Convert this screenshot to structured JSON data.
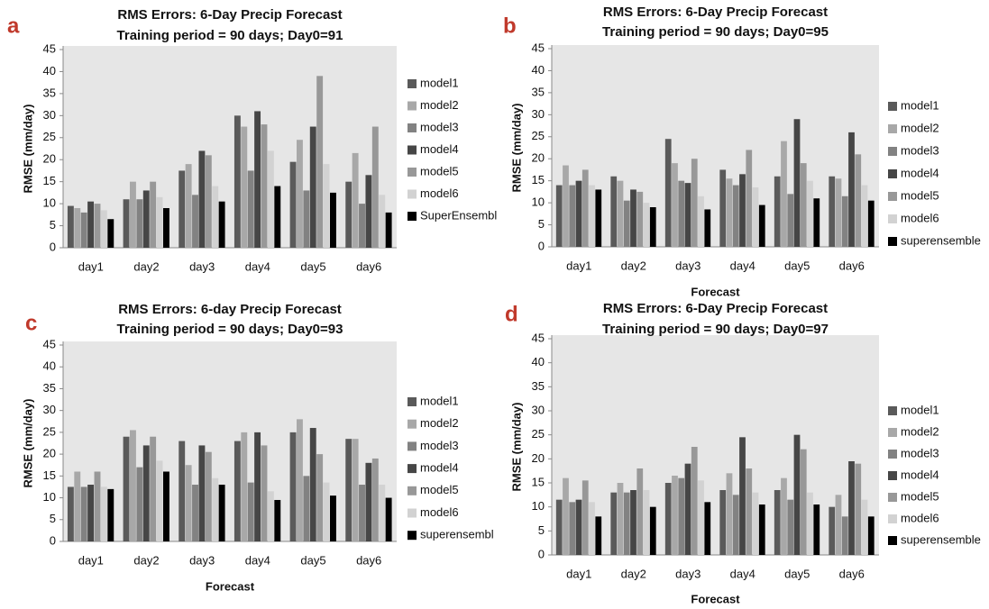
{
  "chart_data": [
    {
      "type": "bar",
      "label": "a",
      "title": "RMS Errors: 6-Day Precip Forecast",
      "subtitle": "Training period = 90 days;  Day0=91",
      "y_label": "RMSE (mm/day)",
      "categories": [
        "day1",
        "day2",
        "day3",
        "day4",
        "day5",
        "day6"
      ],
      "ylim": [
        0,
        45
      ],
      "yticks": [
        0,
        5,
        10,
        15,
        20,
        25,
        30,
        35,
        40,
        45
      ],
      "series": [
        {
          "name": "model1",
          "color": "#5a5a5a",
          "values": [
            9.5,
            11,
            17.5,
            30,
            19.5,
            15
          ]
        },
        {
          "name": "model2",
          "color": "#a8a8a8",
          "values": [
            9,
            15,
            19,
            27.5,
            24.5,
            21.5
          ]
        },
        {
          "name": "model3",
          "color": "#828282",
          "values": [
            8,
            11,
            12,
            17.5,
            13,
            10
          ]
        },
        {
          "name": "model4",
          "color": "#464646",
          "values": [
            10.5,
            13,
            22,
            31,
            27.5,
            16.5
          ]
        },
        {
          "name": "model5",
          "color": "#989898",
          "values": [
            10,
            15,
            21,
            28,
            39,
            27.5
          ]
        },
        {
          "name": "model6",
          "color": "#d2d2d2",
          "values": [
            8.5,
            11.5,
            14,
            22,
            19,
            12
          ]
        },
        {
          "name": "SuperEnsembl",
          "color": "#000000",
          "values": [
            6.5,
            9,
            10.5,
            14,
            12.5,
            8
          ]
        }
      ]
    },
    {
      "type": "bar",
      "label": "b",
      "title": "RMS Errors: 6-Day Precip Forecast",
      "subtitle": "Training period = 90 days;  Day0=95",
      "y_label": "RMSE (mm/day)",
      "x_label": "Forecast",
      "categories": [
        "day1",
        "day2",
        "day3",
        "day4",
        "day5",
        "day6"
      ],
      "ylim": [
        0,
        45
      ],
      "yticks": [
        0,
        5,
        10,
        15,
        20,
        25,
        30,
        35,
        40,
        45
      ],
      "series": [
        {
          "name": "model1",
          "color": "#5a5a5a",
          "values": [
            14,
            16,
            24.5,
            17.5,
            16,
            16
          ]
        },
        {
          "name": "model2",
          "color": "#a8a8a8",
          "values": [
            18.5,
            15,
            19,
            15.5,
            24,
            15.5
          ]
        },
        {
          "name": "model3",
          "color": "#828282",
          "values": [
            14,
            10.5,
            15,
            14,
            12,
            11.5
          ]
        },
        {
          "name": "model4",
          "color": "#464646",
          "values": [
            15,
            13,
            14.5,
            16.5,
            29,
            26
          ]
        },
        {
          "name": "model5",
          "color": "#989898",
          "values": [
            17.5,
            12.5,
            20,
            22,
            19,
            21
          ]
        },
        {
          "name": "model6",
          "color": "#d2d2d2",
          "values": [
            14,
            10,
            11.5,
            13.5,
            15,
            14
          ]
        },
        {
          "name": "superensemble",
          "color": "#000000",
          "values": [
            13,
            9,
            8.5,
            9.5,
            11,
            10.5
          ]
        }
      ]
    },
    {
      "type": "bar",
      "label": "c",
      "title": "RMS Errors: 6-day Precip Forecast",
      "subtitle": "Training period = 90 days;  Day0=93",
      "y_label": "RMSE (mm/day)",
      "x_label": "Forecast",
      "categories": [
        "day1",
        "day2",
        "day3",
        "day4",
        "day5",
        "day6"
      ],
      "ylim": [
        0,
        45
      ],
      "yticks": [
        0,
        5,
        10,
        15,
        20,
        25,
        30,
        35,
        40,
        45
      ],
      "series": [
        {
          "name": "model1",
          "color": "#5a5a5a",
          "values": [
            12.5,
            24,
            23,
            23,
            25,
            23.5
          ]
        },
        {
          "name": "model2",
          "color": "#a8a8a8",
          "values": [
            16,
            25.5,
            17.5,
            25,
            28,
            23.5
          ]
        },
        {
          "name": "model3",
          "color": "#828282",
          "values": [
            12.5,
            17,
            13,
            13.5,
            15,
            13
          ]
        },
        {
          "name": "model4",
          "color": "#464646",
          "values": [
            13,
            22,
            22,
            25,
            26,
            18
          ]
        },
        {
          "name": "model5",
          "color": "#989898",
          "values": [
            16,
            24,
            20.5,
            22,
            20,
            19
          ]
        },
        {
          "name": "model6",
          "color": "#d2d2d2",
          "values": [
            12.5,
            18.5,
            14.5,
            11.5,
            13.5,
            13
          ]
        },
        {
          "name": "superensembl",
          "color": "#000000",
          "values": [
            12,
            16,
            13,
            9.5,
            10.5,
            10
          ]
        }
      ]
    },
    {
      "type": "bar",
      "label": "d",
      "title": "RMS Errors: 6-Day Precip Forecast",
      "subtitle": "Training period = 90 days;  Day0=97",
      "y_label": "RMSE (mm/day)",
      "x_label": "Forecast",
      "categories": [
        "day1",
        "day2",
        "day3",
        "day4",
        "day5",
        "day6"
      ],
      "ylim": [
        0,
        45
      ],
      "yticks": [
        0,
        5,
        10,
        15,
        20,
        25,
        30,
        35,
        40,
        45
      ],
      "series": [
        {
          "name": "model1",
          "color": "#5a5a5a",
          "values": [
            11.5,
            13,
            15,
            13.5,
            13.5,
            10
          ]
        },
        {
          "name": "model2",
          "color": "#a8a8a8",
          "values": [
            16,
            15,
            16.5,
            17,
            16,
            12.5
          ]
        },
        {
          "name": "model3",
          "color": "#828282",
          "values": [
            11,
            13,
            16,
            12.5,
            11.5,
            8
          ]
        },
        {
          "name": "model4",
          "color": "#464646",
          "values": [
            11.5,
            13.5,
            19,
            24.5,
            25,
            19.5
          ]
        },
        {
          "name": "model5",
          "color": "#989898",
          "values": [
            15.5,
            18,
            22.5,
            18,
            22,
            19
          ]
        },
        {
          "name": "model6",
          "color": "#d2d2d2",
          "values": [
            11,
            13.5,
            15.5,
            13,
            13,
            11.5
          ]
        },
        {
          "name": "superensemble",
          "color": "#000000",
          "values": [
            8,
            10,
            11,
            10.5,
            10.5,
            8
          ]
        }
      ]
    }
  ]
}
